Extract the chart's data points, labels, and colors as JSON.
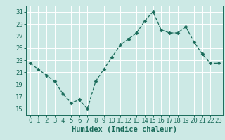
{
  "x": [
    0,
    1,
    2,
    3,
    4,
    5,
    6,
    7,
    8,
    9,
    10,
    11,
    12,
    13,
    14,
    15,
    16,
    17,
    18,
    19,
    20,
    21,
    22,
    23
  ],
  "y": [
    22.5,
    21.5,
    20.5,
    19.5,
    17.5,
    16.0,
    16.5,
    15.0,
    19.5,
    21.5,
    23.5,
    25.5,
    26.5,
    27.5,
    29.5,
    31.0,
    28.0,
    27.5,
    27.5,
    28.5,
    26.0,
    24.0,
    22.5,
    22.5
  ],
  "line_color": "#1a6b5a",
  "marker": "D",
  "marker_size": 2.5,
  "bg_color": "#cce9e5",
  "grid_color": "#ffffff",
  "xlabel": "Humidex (Indice chaleur)",
  "xlim": [
    -0.5,
    23.5
  ],
  "ylim": [
    14,
    32
  ],
  "yticks": [
    15,
    17,
    19,
    21,
    23,
    25,
    27,
    29,
    31
  ],
  "xticks": [
    0,
    1,
    2,
    3,
    4,
    5,
    6,
    7,
    8,
    9,
    10,
    11,
    12,
    13,
    14,
    15,
    16,
    17,
    18,
    19,
    20,
    21,
    22,
    23
  ],
  "tick_color": "#1a6b5a",
  "spine_color": "#1a6b5a",
  "xlabel_fontsize": 7.5,
  "tick_fontsize": 6.5
}
